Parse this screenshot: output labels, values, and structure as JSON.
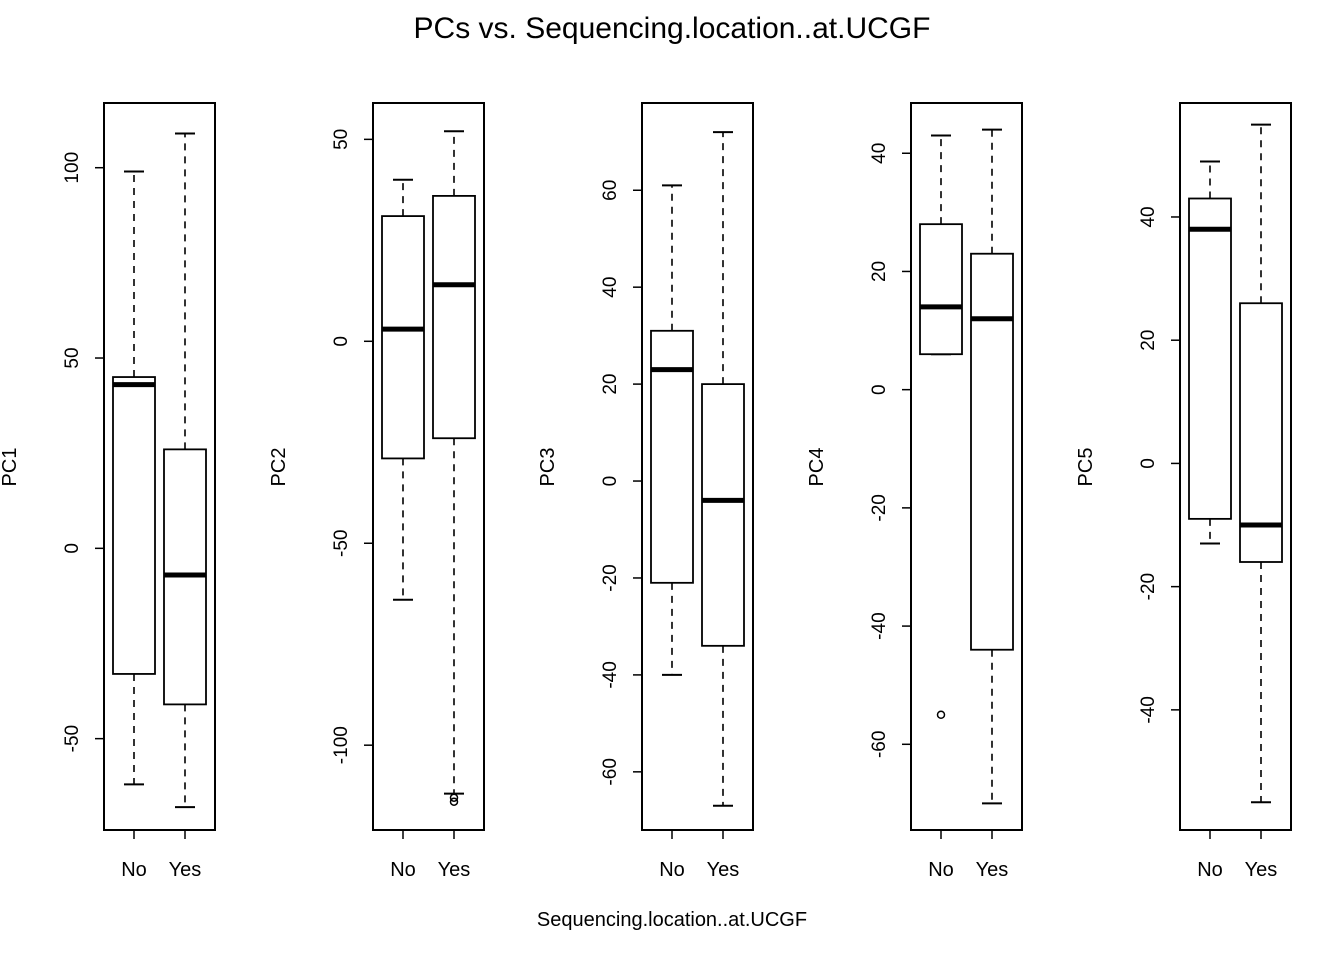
{
  "title": "PCs vs. Sequencing.location..at.UCGF",
  "xlabel": "Sequencing.location..at.UCGF",
  "chart_data": [
    {
      "type": "box",
      "ylabel": "PC1",
      "categories": [
        "No",
        "Yes"
      ],
      "ylim": [
        -74,
        117
      ],
      "yticks": [
        -50,
        0,
        50,
        100
      ],
      "boxes": [
        {
          "category": "No",
          "lower_whisker": -62,
          "q1": -33,
          "median": 43,
          "q3": 45,
          "upper_whisker": 99,
          "outliers": []
        },
        {
          "category": "Yes",
          "lower_whisker": -68,
          "q1": -41,
          "median": -7,
          "q3": 26,
          "upper_whisker": 109,
          "outliers": []
        }
      ]
    },
    {
      "type": "box",
      "ylabel": "PC2",
      "categories": [
        "No",
        "Yes"
      ],
      "ylim": [
        -121,
        59
      ],
      "yticks": [
        -100,
        -50,
        0,
        50
      ],
      "boxes": [
        {
          "category": "No",
          "lower_whisker": -64,
          "q1": -29,
          "median": 3,
          "q3": 31,
          "upper_whisker": 40,
          "outliers": []
        },
        {
          "category": "Yes",
          "lower_whisker": -112,
          "q1": -24,
          "median": 14,
          "q3": 36,
          "upper_whisker": 52,
          "outliers": [
            -114,
            -113
          ]
        }
      ]
    },
    {
      "type": "box",
      "ylabel": "PC3",
      "categories": [
        "No",
        "Yes"
      ],
      "ylim": [
        -72,
        78
      ],
      "yticks": [
        -60,
        -40,
        -20,
        0,
        20,
        40,
        60
      ],
      "boxes": [
        {
          "category": "No",
          "lower_whisker": -40,
          "q1": -21,
          "median": 23,
          "q3": 31,
          "upper_whisker": 61,
          "outliers": []
        },
        {
          "category": "Yes",
          "lower_whisker": -67,
          "q1": -34,
          "median": -4,
          "q3": 20,
          "upper_whisker": 72,
          "outliers": []
        }
      ]
    },
    {
      "type": "box",
      "ylabel": "PC4",
      "categories": [
        "No",
        "Yes"
      ],
      "ylim": [
        -74.5,
        48.5
      ],
      "yticks": [
        -60,
        -40,
        -20,
        0,
        20,
        40
      ],
      "boxes": [
        {
          "category": "No",
          "lower_whisker": 6,
          "q1": 6,
          "median": 14,
          "q3": 28,
          "upper_whisker": 43,
          "outliers": [
            -55
          ]
        },
        {
          "category": "Yes",
          "lower_whisker": -70,
          "q1": -44,
          "median": 12,
          "q3": 23,
          "upper_whisker": 44,
          "outliers": []
        }
      ]
    },
    {
      "type": "box",
      "ylabel": "PC5",
      "categories": [
        "No",
        "Yes"
      ],
      "ylim": [
        -59.5,
        58.5
      ],
      "yticks": [
        -40,
        -20,
        0,
        20,
        40
      ],
      "boxes": [
        {
          "category": "No",
          "lower_whisker": -13,
          "q1": -9,
          "median": 38,
          "q3": 43,
          "upper_whisker": 49,
          "outliers": []
        },
        {
          "category": "Yes",
          "lower_whisker": -55,
          "q1": -16,
          "median": -10,
          "q3": 26,
          "upper_whisker": 55,
          "outliers": []
        }
      ]
    }
  ]
}
